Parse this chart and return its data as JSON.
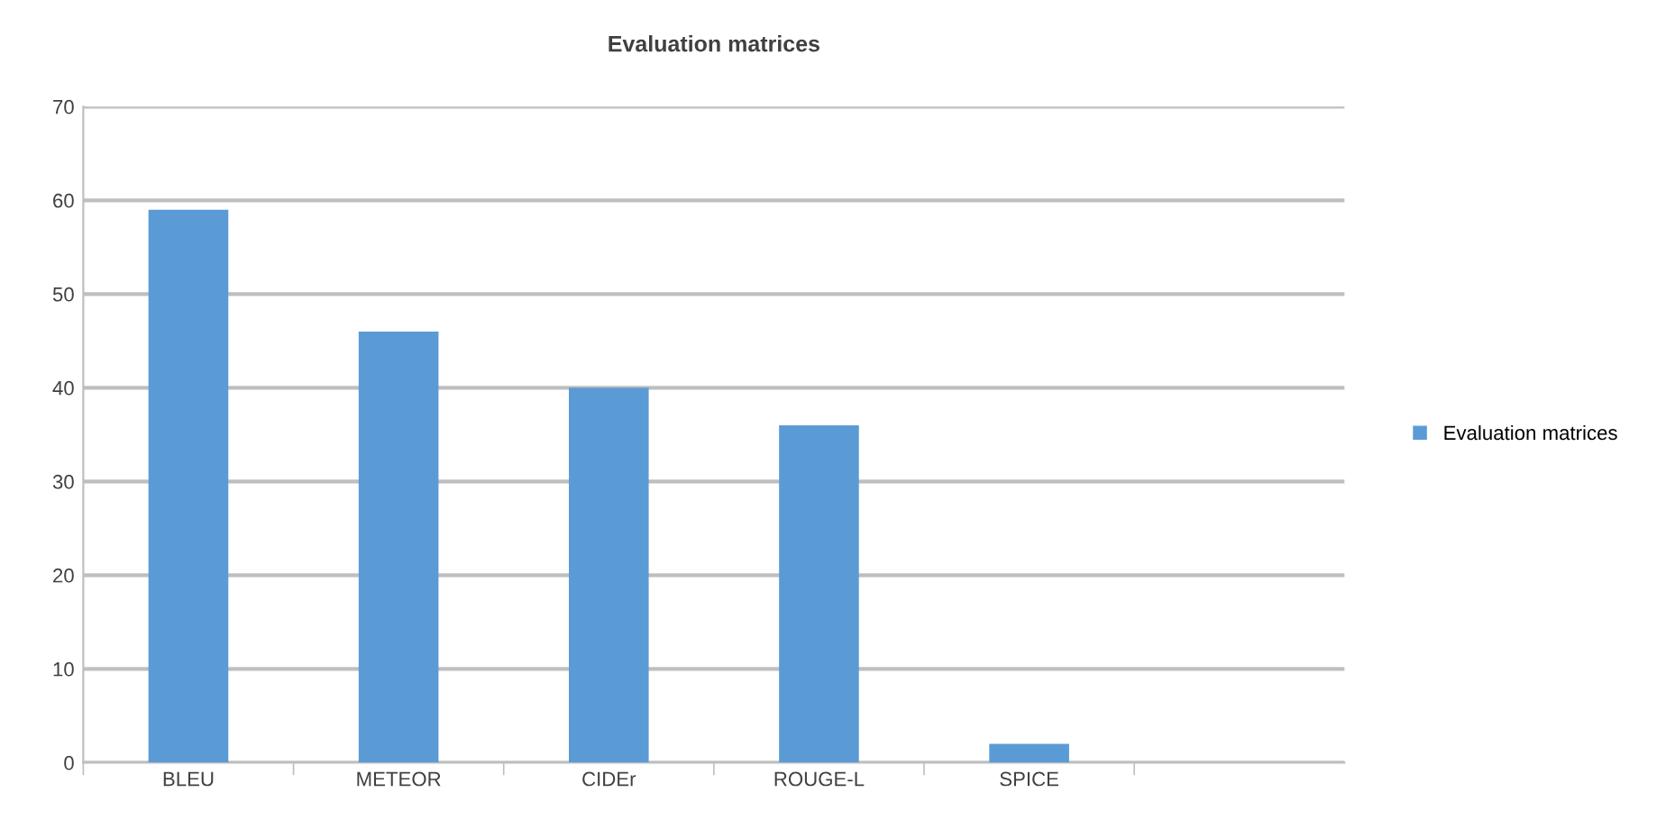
{
  "chart_data": {
    "type": "bar",
    "title": "Evaluation matrices",
    "categories": [
      "BLEU",
      "METEOR",
      "CIDEr",
      "ROUGE-L",
      "SPICE",
      null
    ],
    "series": [
      {
        "name": "Evaluation matrices",
        "color": "#5b9bd5",
        "values": [
          59,
          46,
          40,
          36,
          2,
          null
        ]
      }
    ],
    "ylim": [
      0,
      70
    ],
    "yticks": [
      0,
      10,
      20,
      30,
      40,
      50,
      60,
      70
    ],
    "grid": "y",
    "legend": "right"
  }
}
